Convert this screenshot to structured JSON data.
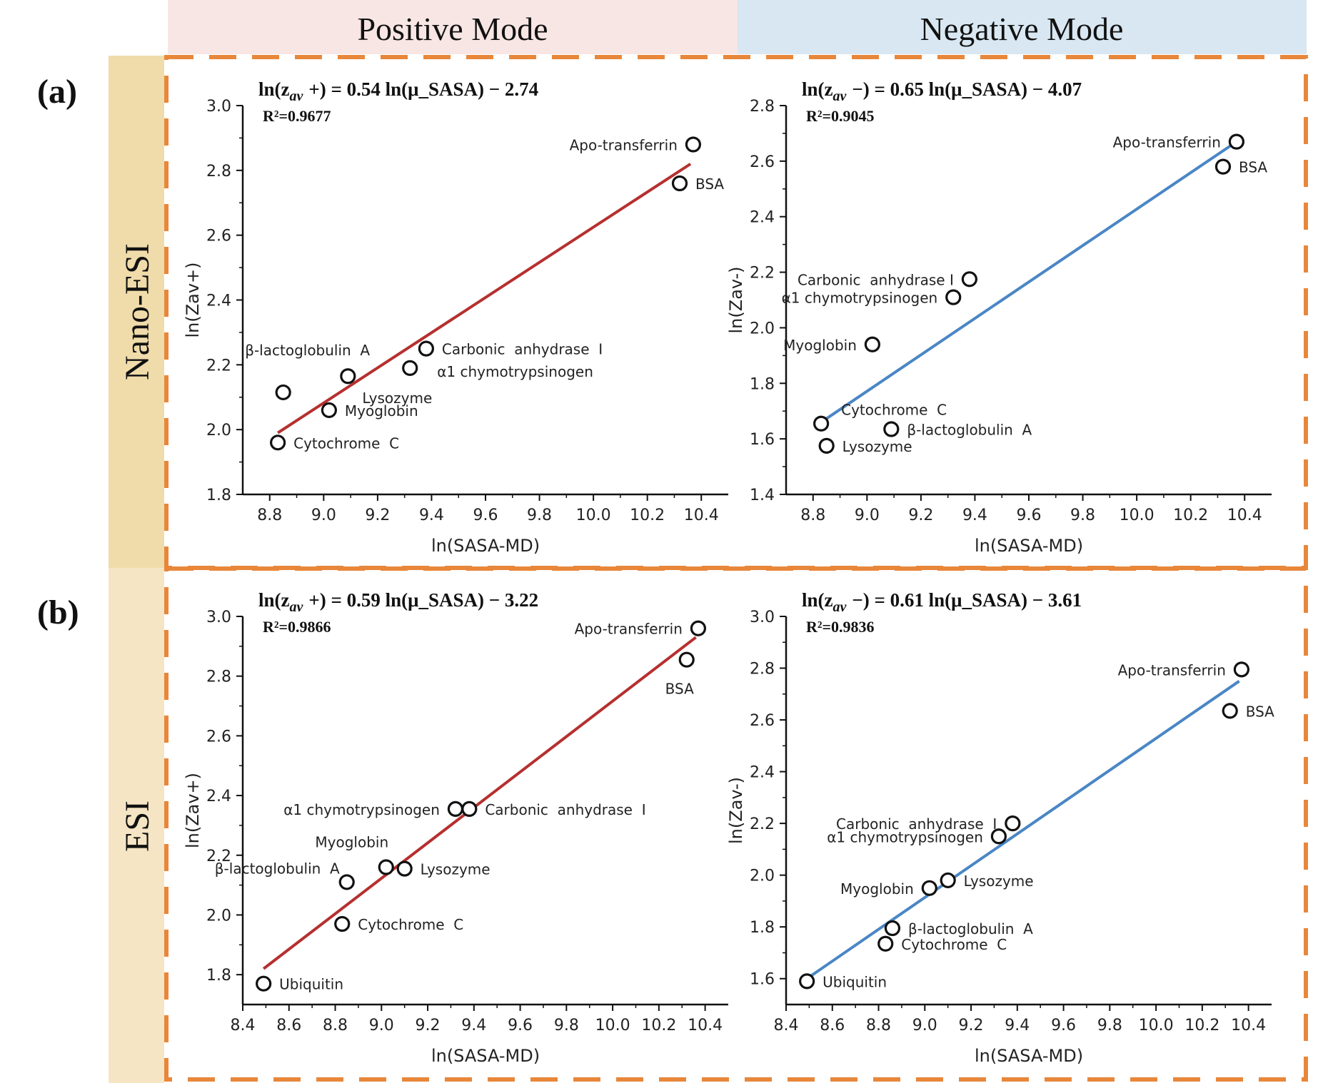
{
  "header": {
    "positive_label": "Positive Mode",
    "negative_label": "Negative Mode",
    "positive_bg": "#f8e6e4",
    "negative_bg": "#d8e7f1"
  },
  "rows": [
    {
      "tag": "(a)",
      "side_label": "Nano-ESI",
      "side_bg": "#f0dcaa"
    },
    {
      "tag": "(b)",
      "side_label": "ESI",
      "side_bg": "#f5e5c4"
    }
  ],
  "frame_color": "#e8873a",
  "chart_data": [
    {
      "id": "a-pos",
      "type": "scatter",
      "xlabel": "ln(SASA-MD)",
      "ylabel": "ln(Zav+)",
      "xlim": [
        8.7,
        10.5
      ],
      "ylim": [
        1.8,
        3.0
      ],
      "xticks": [
        "8.8",
        "9.0",
        "9.2",
        "9.4",
        "9.6",
        "9.8",
        "10.0",
        "10.2",
        "10.4"
      ],
      "yticks": [
        "1.8",
        "2.0",
        "2.2",
        "2.4",
        "2.6",
        "2.8",
        "3.0"
      ],
      "equation": {
        "lhs": "ln(z",
        "sub": "av",
        "sign": "+",
        "rhs": ") = 0.54 ln(μ_SASA) − 2.74"
      },
      "r2": "R²=0.9677",
      "fit": {
        "x": [
          8.83,
          10.36
        ],
        "y": [
          1.99,
          2.82
        ],
        "color": "#b5302f"
      },
      "points": [
        {
          "label": "Apo-transferrin",
          "x": 10.37,
          "y": 2.88,
          "anchor": "left"
        },
        {
          "label": "BSA",
          "x": 10.32,
          "y": 2.76,
          "anchor": "right"
        },
        {
          "label": "Carbonic  anhydrase  I",
          "x": 9.38,
          "y": 2.25,
          "anchor": "right"
        },
        {
          "label": "α1 chymotrypsinogen",
          "x": 9.32,
          "y": 2.19,
          "anchor": "right-low"
        },
        {
          "label": "β-lactoglobulin  A",
          "x": 8.85,
          "y": 2.115,
          "anchor": "above-left"
        },
        {
          "label": "Lysozyme",
          "x": 9.09,
          "y": 2.165,
          "anchor": "below"
        },
        {
          "label": "Myoglobin",
          "x": 9.02,
          "y": 2.06,
          "anchor": "right"
        },
        {
          "label": "Cytochrome  C",
          "x": 8.83,
          "y": 1.96,
          "anchor": "right"
        }
      ]
    },
    {
      "id": "a-neg",
      "type": "scatter",
      "xlabel": "ln(SASA-MD)",
      "ylabel": "ln(Zav-)",
      "xlim": [
        8.7,
        10.5
      ],
      "ylim": [
        1.4,
        2.8
      ],
      "xticks": [
        "8.8",
        "9.0",
        "9.2",
        "9.4",
        "9.6",
        "9.8",
        "10.0",
        "10.2",
        "10.4"
      ],
      "yticks": [
        "1.4",
        "1.6",
        "1.8",
        "2.0",
        "2.2",
        "2.4",
        "2.6",
        "2.8"
      ],
      "equation": {
        "lhs": "ln(z",
        "sub": "av",
        "sign": "−",
        "rhs": ") = 0.65 ln(μ_SASA) − 4.07"
      },
      "r2": "R²=0.9045",
      "fit": {
        "x": [
          8.83,
          10.37
        ],
        "y": [
          1.66,
          2.67
        ],
        "color": "#4a86c5"
      },
      "points": [
        {
          "label": "Apo-transferrin",
          "x": 10.37,
          "y": 2.67,
          "anchor": "left"
        },
        {
          "label": "BSA",
          "x": 10.32,
          "y": 2.58,
          "anchor": "right"
        },
        {
          "label": "Carbonic  anhydrase I",
          "x": 9.38,
          "y": 2.175,
          "anchor": "left"
        },
        {
          "label": "α1 chymotrypsinogen",
          "x": 9.32,
          "y": 2.11,
          "anchor": "left"
        },
        {
          "label": "Myoglobin",
          "x": 9.02,
          "y": 1.94,
          "anchor": "left"
        },
        {
          "label": "Cytochrome  C",
          "x": 8.83,
          "y": 1.655,
          "anchor": "right-high"
        },
        {
          "label": "β-lactoglobulin  A",
          "x": 9.09,
          "y": 1.635,
          "anchor": "right"
        },
        {
          "label": "Lysozyme",
          "x": 8.85,
          "y": 1.575,
          "anchor": "right"
        }
      ]
    },
    {
      "id": "b-pos",
      "type": "scatter",
      "xlabel": "ln(SASA-MD)",
      "ylabel": "ln(Zav+)",
      "xlim": [
        8.4,
        10.5
      ],
      "ylim": [
        1.7,
        3.0
      ],
      "xticks": [
        "8.4",
        "8.6",
        "8.8",
        "9.0",
        "9.2",
        "9.4",
        "9.6",
        "9.8",
        "10.0",
        "10.2",
        "10.4"
      ],
      "yticks": [
        "1.8",
        "2.0",
        "2.2",
        "2.4",
        "2.6",
        "2.8",
        "3.0"
      ],
      "equation": {
        "lhs": "ln(z",
        "sub": "av",
        "sign": "+",
        "rhs": ") = 0.59 ln(μ_SASA) − 3.22"
      },
      "r2": "R²=0.9866",
      "fit": {
        "x": [
          8.49,
          10.36
        ],
        "y": [
          1.82,
          2.93
        ],
        "color": "#b5302f"
      },
      "points": [
        {
          "label": "Apo-transferrin",
          "x": 10.37,
          "y": 2.96,
          "anchor": "left"
        },
        {
          "label": "BSA",
          "x": 10.32,
          "y": 2.855,
          "anchor": "below"
        },
        {
          "label": "α1 chymotrypsinogen",
          "x": 9.32,
          "y": 2.355,
          "anchor": "left"
        },
        {
          "label": "Carbonic  anhydrase  I",
          "x": 9.38,
          "y": 2.355,
          "anchor": "right"
        },
        {
          "label": "Myoglobin",
          "x": 9.02,
          "y": 2.16,
          "anchor": "above-left"
        },
        {
          "label": "β-lactoglobulin  A",
          "x": 8.85,
          "y": 2.11,
          "anchor": "left-high"
        },
        {
          "label": "Lysozyme",
          "x": 9.1,
          "y": 2.155,
          "anchor": "right"
        },
        {
          "label": "Cytochrome  C",
          "x": 8.83,
          "y": 1.97,
          "anchor": "right"
        },
        {
          "label": "Ubiquitin",
          "x": 8.49,
          "y": 1.77,
          "anchor": "right"
        }
      ]
    },
    {
      "id": "b-neg",
      "type": "scatter",
      "xlabel": "ln(SASA-MD)",
      "ylabel": "ln(Zav-)",
      "xlim": [
        8.4,
        10.5
      ],
      "ylim": [
        1.5,
        3.0
      ],
      "xticks": [
        "8.4",
        "8.6",
        "8.8",
        "9.0",
        "9.2",
        "9.4",
        "9.6",
        "9.8",
        "10.0",
        "10.2",
        "10.4"
      ],
      "yticks": [
        "1.6",
        "1.8",
        "2.0",
        "2.2",
        "2.4",
        "2.6",
        "2.8",
        "3.0"
      ],
      "equation": {
        "lhs": "ln(z",
        "sub": "av",
        "sign": "−",
        "rhs": ") = 0.61 ln(μ_SASA) − 3.61"
      },
      "r2": "R²=0.9836",
      "fit": {
        "x": [
          8.49,
          10.36
        ],
        "y": [
          1.6,
          2.75
        ],
        "color": "#4a86c5"
      },
      "points": [
        {
          "label": "Apo-transferrin",
          "x": 10.37,
          "y": 2.795,
          "anchor": "left"
        },
        {
          "label": "BSA",
          "x": 10.32,
          "y": 2.635,
          "anchor": "right"
        },
        {
          "label": "Carbonic  anhydrase  I",
          "x": 9.38,
          "y": 2.2,
          "anchor": "left"
        },
        {
          "label": "α1 chymotrypsinogen",
          "x": 9.32,
          "y": 2.15,
          "anchor": "left"
        },
        {
          "label": "Myoglobin",
          "x": 9.02,
          "y": 1.95,
          "anchor": "left"
        },
        {
          "label": "Lysozyme",
          "x": 9.1,
          "y": 1.98,
          "anchor": "right"
        },
        {
          "label": "β-lactoglobulin  A",
          "x": 8.86,
          "y": 1.795,
          "anchor": "right"
        },
        {
          "label": "Cytochrome  C",
          "x": 8.83,
          "y": 1.735,
          "anchor": "right"
        },
        {
          "label": "Ubiquitin",
          "x": 8.49,
          "y": 1.59,
          "anchor": "right"
        }
      ]
    }
  ]
}
